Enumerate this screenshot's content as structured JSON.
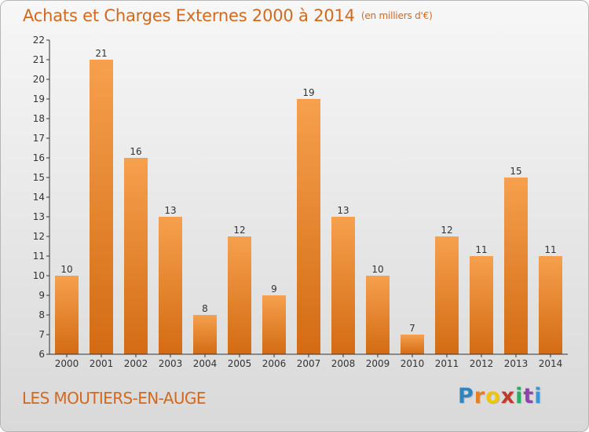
{
  "header": {
    "title": "Achats et Charges Externes 2000 à 2014",
    "unit": "(en milliers d'€)"
  },
  "footer": {
    "commune": "LES MOUTIERS-EN-AUGE",
    "brand_letters": [
      "P",
      "r",
      "o",
      "x",
      "i",
      "t",
      "i"
    ],
    "brand_colors": [
      "#2e86c1",
      "#e67e22",
      "#f1c40f",
      "#c0392b",
      "#27ae60",
      "#8e44ad",
      "#3498db"
    ]
  },
  "colors": {
    "bar_top": "#f6a04d",
    "bar_bottom": "#d36b14",
    "title": "#d2691e",
    "axis": "#333333"
  },
  "chart_data": {
    "type": "bar",
    "title": "Achats et Charges Externes 2000 à 2014",
    "subtitle": "(en milliers d'€)",
    "categories": [
      "2000",
      "2001",
      "2002",
      "2003",
      "2004",
      "2005",
      "2006",
      "2007",
      "2008",
      "2009",
      "2010",
      "2011",
      "2012",
      "2013",
      "2014"
    ],
    "values": [
      10,
      21,
      16,
      13,
      8,
      12,
      9,
      19,
      13,
      10,
      7,
      12,
      11,
      15,
      11
    ],
    "ylim": [
      6,
      22
    ],
    "yticks": [
      6,
      7,
      8,
      9,
      10,
      11,
      12,
      13,
      14,
      15,
      16,
      17,
      18,
      19,
      20,
      21,
      22
    ],
    "grid": false,
    "legend": "none",
    "data_labels": true
  }
}
